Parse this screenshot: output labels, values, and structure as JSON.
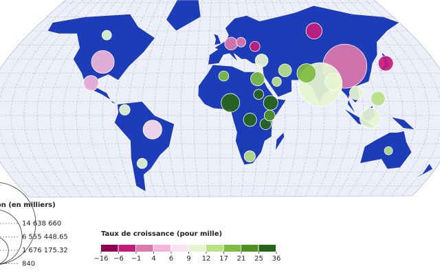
{
  "legend_size": {
    "title": "Population (en milliers)",
    "values": [
      {
        "value": 14638660,
        "label": "14 638 660"
      },
      {
        "value": 6555448.65,
        "label": "6 555 448.65"
      },
      {
        "value": 1676175.32,
        "label": "1 676 175.32"
      },
      {
        "value": 840,
        "label": "840"
      }
    ]
  },
  "legend_color": {
    "title": "Taux de croissance (pour mille)",
    "ticks": [
      {
        "value": -16,
        "label": "−16"
      },
      {
        "value": -6,
        "label": "−6"
      },
      {
        "value": -1,
        "label": "−1"
      },
      4,
      6,
      9,
      12,
      17,
      21,
      25,
      36
    ],
    "colors": [
      "#8e0152",
      "#c51b7d",
      "#de77ae",
      "#f1b6da",
      "#fde0ef",
      "#e6f5d0",
      "#b8e186",
      "#7fbc41",
      "#4d9221",
      "#276419"
    ]
  },
  "bubbles": [
    {
      "lon": 103,
      "lat": 35,
      "population": 1400000,
      "growth": 1
    },
    {
      "lon": 79,
      "lat": 22,
      "population": 1380000,
      "growth": 10
    },
    {
      "lon": -98,
      "lat": 38,
      "population": 330000,
      "growth": 5
    },
    {
      "lon": 115,
      "lat": -2,
      "population": 270000,
      "growth": 10
    },
    {
      "lon": -52,
      "lat": -10,
      "population": 212000,
      "growth": 7
    },
    {
      "lon": 70,
      "lat": 30,
      "population": 220000,
      "growth": 20
    },
    {
      "lon": 8,
      "lat": 9,
      "population": 206000,
      "growth": 26
    },
    {
      "lon": 90,
      "lat": 24,
      "population": 165000,
      "growth": 10
    },
    {
      "lon": 90,
      "lat": 60,
      "population": 146000,
      "growth": -2
    },
    {
      "lon": -102,
      "lat": 23,
      "population": 129000,
      "growth": 5
    },
    {
      "lon": 138,
      "lat": 37,
      "population": 126000,
      "growth": -3
    },
    {
      "lon": 39,
      "lat": 9,
      "population": 115000,
      "growth": 26
    },
    {
      "lon": 122,
      "lat": 12,
      "population": 110000,
      "growth": 15
    },
    {
      "lon": 30,
      "lat": 26,
      "population": 102000,
      "growth": 20
    },
    {
      "lon": 106,
      "lat": 16,
      "population": 97000,
      "growth": 9
    },
    {
      "lon": 23,
      "lat": -3,
      "population": 90000,
      "growth": 32
    },
    {
      "lon": 53,
      "lat": 32,
      "population": 84000,
      "growth": 13
    },
    {
      "lon": 35,
      "lat": 39,
      "population": 84000,
      "growth": 11
    },
    {
      "lon": 10,
      "lat": 51,
      "population": 83000,
      "growth": 1
    },
    {
      "lon": -106,
      "lat": 57,
      "population": 38000,
      "growth": 9
    },
    {
      "lon": -64,
      "lat": -34,
      "population": 45000,
      "growth": 9
    },
    {
      "lon": 24,
      "lat": -29,
      "population": 59000,
      "growth": 13
    },
    {
      "lon": 134,
      "lat": -25,
      "population": 25000,
      "growth": 12
    },
    {
      "lon": 35,
      "lat": -6,
      "population": 60000,
      "growth": 30
    },
    {
      "lon": 38,
      "lat": 0,
      "population": 54000,
      "growth": 23
    },
    {
      "lon": -73,
      "lat": 4,
      "population": 51000,
      "growth": 11
    },
    {
      "lon": 30,
      "lat": 15,
      "population": 44000,
      "growth": 25
    },
    {
      "lon": 3,
      "lat": 28,
      "population": 44000,
      "growth": 18
    },
    {
      "lon": 31,
      "lat": 49,
      "population": 44000,
      "growth": -6
    },
    {
      "lon": 19,
      "lat": 52,
      "population": 38000,
      "growth": -1
    },
    {
      "lon": 45,
      "lat": 24,
      "population": 35000,
      "growth": 16
    }
  ]
}
